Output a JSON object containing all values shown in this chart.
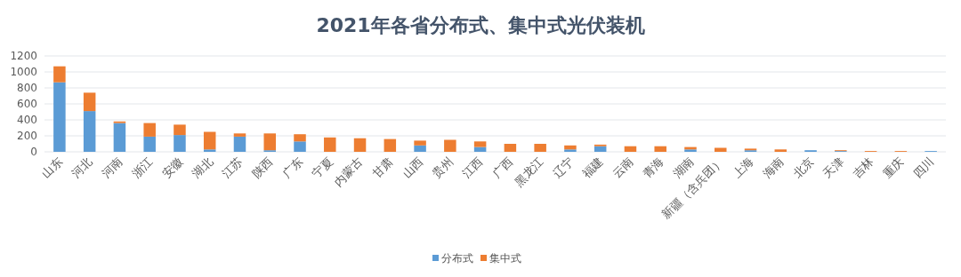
{
  "chart_data": {
    "type": "bar",
    "title": "2021年各省分布式、集中式光伏装机",
    "stacked": true,
    "categories": [
      "山东",
      "河北",
      "河南",
      "浙江",
      "安徽",
      "湖北",
      "江苏",
      "陕西",
      "广东",
      "宁夏",
      "内蒙古",
      "甘肃",
      "山西",
      "贵州",
      "江西",
      "广西",
      "黑龙江",
      "辽宁",
      "福建",
      "云南",
      "青海",
      "湖南",
      "新疆（含兵团）",
      "上海",
      "海南",
      "北京",
      "天津",
      "吉林",
      "重庆",
      "四川"
    ],
    "series": [
      {
        "name": "分布式",
        "color": "#5b9bd5",
        "values": [
          870,
          510,
          360,
          190,
          210,
          30,
          190,
          20,
          130,
          0,
          0,
          0,
          80,
          0,
          60,
          0,
          0,
          30,
          70,
          0,
          0,
          30,
          0,
          20,
          0,
          20,
          10,
          0,
          0,
          10
        ]
      },
      {
        "name": "集中式",
        "color": "#ed7d31",
        "values": [
          200,
          230,
          20,
          170,
          130,
          220,
          40,
          210,
          90,
          180,
          170,
          160,
          60,
          150,
          70,
          100,
          100,
          50,
          20,
          70,
          70,
          30,
          50,
          20,
          30,
          0,
          10,
          10,
          10,
          0
        ]
      }
    ],
    "ylim": [
      0,
      1200
    ],
    "yticks": [
      0,
      200,
      400,
      600,
      800,
      1000,
      1200
    ],
    "grid": "y",
    "legend": "bottom"
  }
}
